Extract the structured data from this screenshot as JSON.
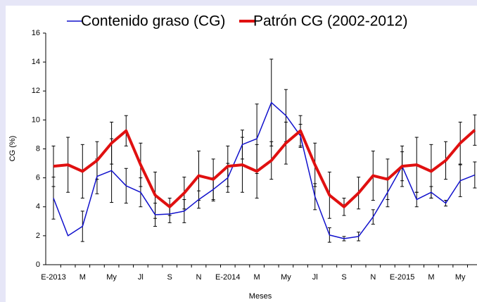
{
  "chart_data": {
    "type": "line",
    "x_label": "Meses",
    "y_label": "CG (%)",
    "categories": [
      "E-2013",
      null,
      "M",
      null,
      "My",
      null,
      "Jl",
      null,
      "S",
      null,
      "N",
      null,
      "E-2014",
      null,
      "M",
      null,
      "My",
      null,
      "Jl",
      null,
      "S",
      null,
      "N",
      null,
      "E-2015",
      null,
      "M",
      null,
      "My",
      null
    ],
    "series": [
      {
        "name": "Contenido graso (CG)",
        "color": "#1010cc",
        "width": 1.5,
        "values": [
          4.6,
          2.0,
          2.65,
          6.1,
          6.5,
          5.45,
          5.0,
          3.45,
          3.5,
          3.7,
          4.5,
          5.2,
          6.0,
          8.3,
          8.7,
          11.2,
          10.3,
          8.9,
          4.7,
          2.05,
          1.8,
          1.95,
          3.3,
          5.0,
          6.8,
          4.5,
          5.0,
          4.25,
          5.8,
          6.2
        ],
        "errors": [
          1.45,
          null,
          1.05,
          1.2,
          2.2,
          1.2,
          1.0,
          0.8,
          0.6,
          0.8,
          0.6,
          0.8,
          1.0,
          1.0,
          2.4,
          3.0,
          1.8,
          0.8,
          0.9,
          0.5,
          0.15,
          0.3,
          0.5,
          1.0,
          1.0,
          0.5,
          0.4,
          0.2,
          1.1,
          0.9
        ]
      },
      {
        "name": "Patrón CG (2002-2012)",
        "color": "#e01010",
        "width": 4,
        "values": [
          6.8,
          6.9,
          6.45,
          7.2,
          8.4,
          9.25,
          6.9,
          4.8,
          4.0,
          4.95,
          6.15,
          5.9,
          6.8,
          6.9,
          6.45,
          7.2,
          8.4,
          9.25,
          6.9,
          4.8,
          4.0,
          4.95,
          6.15,
          5.9,
          6.8,
          6.9,
          6.45,
          7.2,
          8.4,
          9.3
        ],
        "errors": [
          1.4,
          1.9,
          1.85,
          1.3,
          1.45,
          1.05,
          1.5,
          1.6,
          0.6,
          1.1,
          1.7,
          1.4,
          1.4,
          1.9,
          1.85,
          1.3,
          1.45,
          1.05,
          1.5,
          1.6,
          0.6,
          1.1,
          1.7,
          1.4,
          1.4,
          1.9,
          1.85,
          1.3,
          1.45,
          1.05
        ]
      }
    ],
    "ylim": [
      0,
      16
    ],
    "yticks": [
      0,
      2,
      4,
      6,
      8,
      10,
      12,
      14,
      16
    ],
    "grid": false
  }
}
